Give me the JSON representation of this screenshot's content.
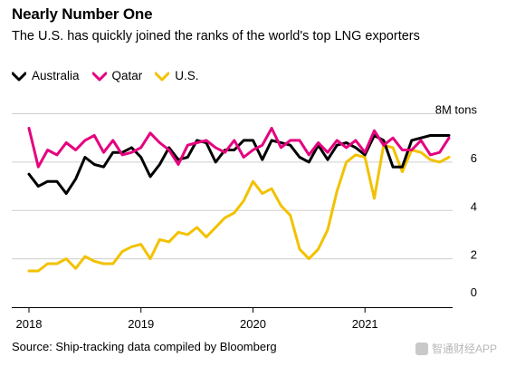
{
  "header": {
    "title": "Nearly Number One",
    "subtitle": "The U.S. has quickly joined the ranks of the world's top LNG exporters"
  },
  "source": "Source: Ship-tracking data compiled by Bloomberg",
  "watermark": "智通财经APP",
  "colors": {
    "Australia": "#000000",
    "Qatar": "#e5007e",
    "U.S.": "#f2c200"
  },
  "chart_data": {
    "type": "line",
    "title": "Nearly Number One",
    "subtitle": "The U.S. has quickly joined the ranks of the world's top LNG exporters",
    "unit": "8M tons",
    "x_ticks": [
      "2018",
      "2019",
      "2020",
      "2021"
    ],
    "x_start": "2018-01",
    "x_end": "2021-10",
    "ylim": [
      0,
      8
    ],
    "y_ticks": [
      0,
      2,
      4,
      6,
      8
    ],
    "y_tick_labels": [
      "0",
      "2",
      "4",
      "6",
      "8M tons"
    ],
    "grid": true,
    "legend": "top-left",
    "x": [
      "2018-01",
      "2018-02",
      "2018-03",
      "2018-04",
      "2018-05",
      "2018-06",
      "2018-07",
      "2018-08",
      "2018-09",
      "2018-10",
      "2018-11",
      "2018-12",
      "2019-01",
      "2019-02",
      "2019-03",
      "2019-04",
      "2019-05",
      "2019-06",
      "2019-07",
      "2019-08",
      "2019-09",
      "2019-10",
      "2019-11",
      "2019-12",
      "2020-01",
      "2020-02",
      "2020-03",
      "2020-04",
      "2020-05",
      "2020-06",
      "2020-07",
      "2020-08",
      "2020-09",
      "2020-10",
      "2020-11",
      "2020-12",
      "2021-01",
      "2021-02",
      "2021-03",
      "2021-04",
      "2021-05",
      "2021-06",
      "2021-07",
      "2021-08",
      "2021-09",
      "2021-10"
    ],
    "series": [
      {
        "name": "Australia",
        "values": [
          5.5,
          5.0,
          5.2,
          5.2,
          4.7,
          5.3,
          6.2,
          5.9,
          5.8,
          6.4,
          6.4,
          6.6,
          6.2,
          5.4,
          5.9,
          6.6,
          6.1,
          6.2,
          6.9,
          6.8,
          6.0,
          6.5,
          6.5,
          6.9,
          6.9,
          6.1,
          6.9,
          6.8,
          6.7,
          6.2,
          6.0,
          6.7,
          6.1,
          6.7,
          6.8,
          6.6,
          6.3,
          7.1,
          6.9,
          5.8,
          5.8,
          6.9,
          7.0,
          7.1,
          7.1,
          7.1
        ]
      },
      {
        "name": "Qatar",
        "values": [
          7.4,
          5.8,
          6.5,
          6.3,
          6.8,
          6.5,
          6.9,
          7.1,
          6.4,
          6.9,
          6.3,
          6.4,
          6.6,
          7.2,
          6.8,
          6.5,
          5.9,
          6.7,
          6.8,
          6.9,
          6.6,
          6.4,
          6.9,
          6.2,
          6.5,
          6.7,
          7.4,
          6.6,
          6.9,
          6.9,
          6.3,
          6.8,
          6.4,
          6.9,
          6.6,
          6.9,
          6.4,
          7.3,
          6.7,
          7.0,
          6.5,
          6.5,
          6.9,
          6.3,
          6.4,
          7.0
        ]
      },
      {
        "name": "U.S.",
        "values": [
          1.5,
          1.5,
          1.8,
          1.8,
          2.0,
          1.6,
          2.1,
          1.9,
          1.8,
          1.8,
          2.3,
          2.5,
          2.6,
          2.0,
          2.8,
          2.7,
          3.1,
          3.0,
          3.3,
          2.9,
          3.3,
          3.7,
          3.9,
          4.4,
          5.2,
          4.7,
          4.9,
          4.2,
          3.8,
          2.4,
          2.0,
          2.4,
          3.2,
          4.8,
          6.0,
          6.3,
          6.2,
          4.5,
          6.7,
          6.6,
          5.6,
          6.5,
          6.4,
          6.1,
          6.0,
          6.2
        ]
      }
    ]
  }
}
